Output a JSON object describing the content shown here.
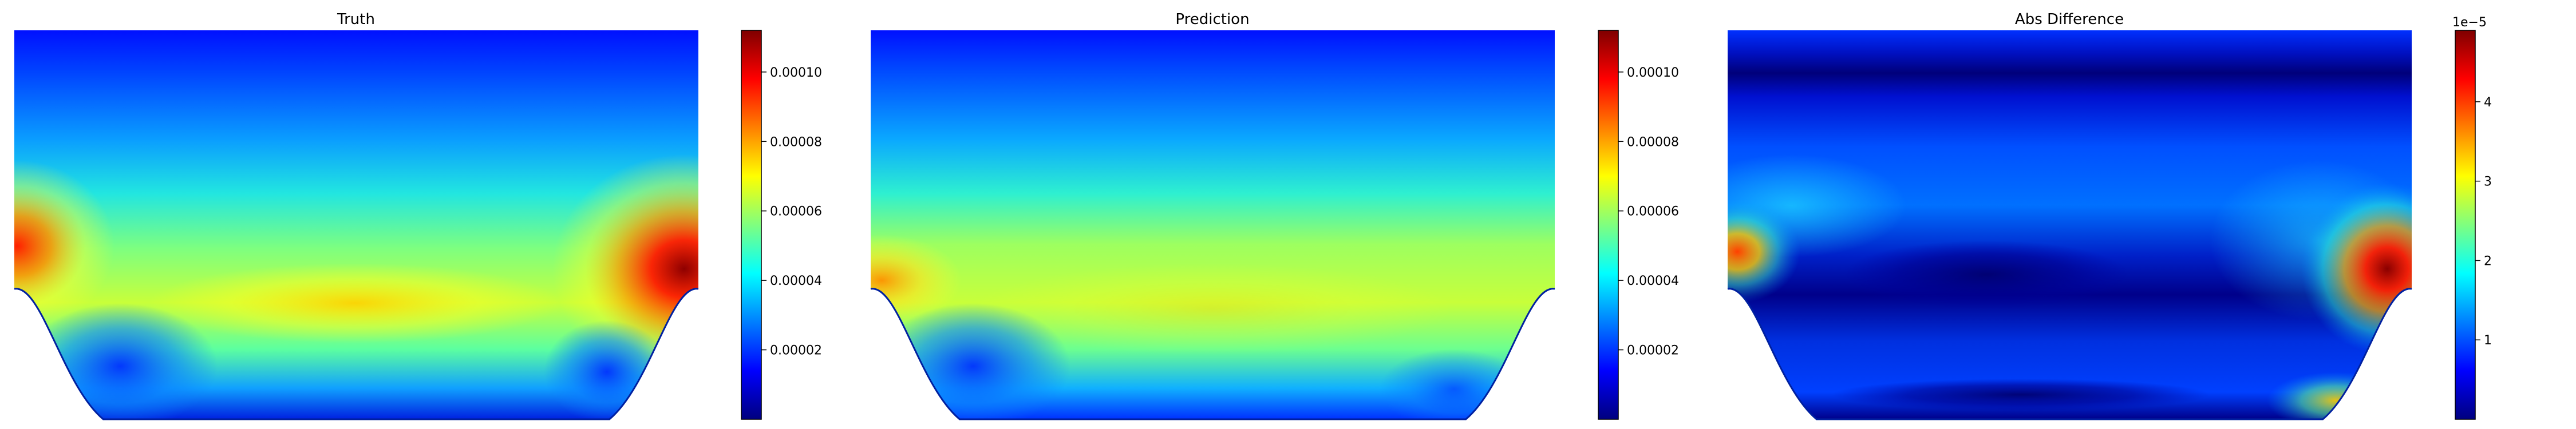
{
  "figure": {
    "background": "#ffffff",
    "colormap": "jet",
    "colormap_stops": [
      "#00007f",
      "#0000ff",
      "#007fff",
      "#00ffff",
      "#7fff7f",
      "#ffff00",
      "#ff7f00",
      "#ff0000",
      "#7f0000"
    ]
  },
  "chart_data": [
    {
      "type": "heatmap",
      "title": "Truth",
      "domain": "channel with curved lower boundary (no axes shown)",
      "colorbar": {
        "min": 0.0,
        "max": 0.000112,
        "ticks": [
          2e-05,
          4e-05,
          6e-05,
          8e-05,
          0.0001
        ],
        "tick_labels": [
          "0.00002",
          "0.00004",
          "0.00006",
          "0.00008",
          "0.00010"
        ],
        "offset_label": ""
      },
      "features": [
        {
          "where": "left inlet",
          "value": 9.5e-05
        },
        {
          "where": "right outlet",
          "value": 0.00011
        },
        {
          "where": "center band",
          "value": 8e-05
        },
        {
          "where": "top edge",
          "value": 5e-06
        }
      ]
    },
    {
      "type": "heatmap",
      "title": "Prediction",
      "domain": "channel with curved lower boundary (no axes shown)",
      "colorbar": {
        "min": 0.0,
        "max": 0.000112,
        "ticks": [
          2e-05,
          4e-05,
          6e-05,
          8e-05,
          0.0001
        ],
        "tick_labels": [
          "0.00002",
          "0.00004",
          "0.00006",
          "0.00008",
          "0.00010"
        ],
        "offset_label": ""
      },
      "features": [
        {
          "where": "left inlet",
          "value": 8.5e-05
        },
        {
          "where": "center band",
          "value": 7e-05
        },
        {
          "where": "top edge",
          "value": 5e-06
        }
      ]
    },
    {
      "type": "heatmap",
      "title": "Abs Difference",
      "domain": "channel with curved lower boundary (no axes shown)",
      "colorbar": {
        "min": 0.0,
        "max": 4.9,
        "ticks": [
          1,
          2,
          3,
          4
        ],
        "tick_labels": [
          "1",
          "2",
          "3",
          "4"
        ],
        "offset_label": "1e−5"
      },
      "features": [
        {
          "where": "left inlet",
          "value": 3.8
        },
        {
          "where": "right outlet",
          "value": 4.8
        },
        {
          "where": "bottom right",
          "value": 2.8
        },
        {
          "where": "top dark band",
          "value": 0.3
        }
      ]
    }
  ]
}
